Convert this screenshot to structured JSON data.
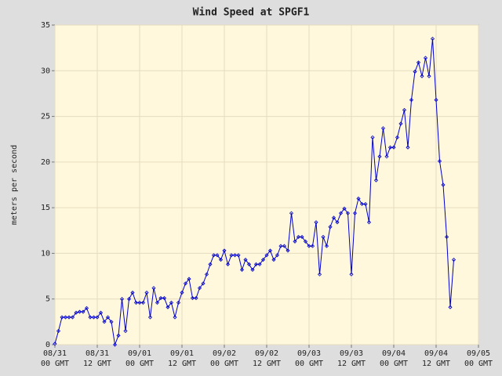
{
  "chart_data": {
    "type": "line",
    "title": "Wind Speed at SPGF1",
    "y_label": "meters per second",
    "x": [
      0,
      1,
      2,
      3,
      4,
      5,
      6,
      7,
      8,
      9,
      10,
      11,
      12,
      13,
      14,
      15,
      16,
      17,
      18,
      19,
      20,
      21,
      22,
      23,
      24,
      25,
      26,
      27,
      28,
      29,
      30,
      31,
      32,
      33,
      34,
      35,
      36,
      37,
      38,
      39,
      40,
      41,
      42,
      43,
      44,
      45,
      46,
      47,
      48,
      49,
      50,
      51,
      52,
      53,
      54,
      55,
      56,
      57,
      58,
      59,
      60,
      61,
      62,
      63,
      64,
      65,
      66,
      67,
      68,
      69,
      70,
      71,
      72,
      73,
      74,
      75,
      76,
      77,
      78,
      79,
      80,
      81,
      82,
      83,
      84,
      85,
      86,
      87,
      88,
      89,
      90,
      91,
      92,
      93,
      94,
      95,
      96,
      97,
      98,
      99,
      100,
      101,
      102,
      103,
      104,
      105,
      106,
      107,
      108,
      109,
      110,
      111,
      112,
      113
    ],
    "series": [
      {
        "name": "Wind Speed",
        "color": "#0000cc",
        "values": [
          0.1,
          1.5,
          3.0,
          3.0,
          3.0,
          3.0,
          3.5,
          3.6,
          3.6,
          4.0,
          3.0,
          3.0,
          3.0,
          3.5,
          2.5,
          3.0,
          2.5,
          0.0,
          1.0,
          5.0,
          1.5,
          5.0,
          5.7,
          4.6,
          4.6,
          4.6,
          5.7,
          3.0,
          6.2,
          4.6,
          5.1,
          5.1,
          4.1,
          4.6,
          3.0,
          4.6,
          5.7,
          6.7,
          7.2,
          5.1,
          5.1,
          6.2,
          6.7,
          7.7,
          8.8,
          9.8,
          9.8,
          9.3,
          10.3,
          8.8,
          9.8,
          9.8,
          9.8,
          8.2,
          9.3,
          8.8,
          8.2,
          8.8,
          8.8,
          9.3,
          9.8,
          10.3,
          9.3,
          9.8,
          10.8,
          10.8,
          10.3,
          14.4,
          11.3,
          11.8,
          11.8,
          11.3,
          10.8,
          10.8,
          13.4,
          7.7,
          11.8,
          10.8,
          12.9,
          13.9,
          13.4,
          14.4,
          14.9,
          14.4,
          7.7,
          14.4,
          16.0,
          15.4,
          15.4,
          13.4,
          22.7,
          18.0,
          20.6,
          23.7,
          20.6,
          21.6,
          21.6,
          22.7,
          24.2,
          25.7,
          21.6,
          26.8,
          29.9,
          30.9,
          29.4,
          31.4,
          29.4,
          33.5,
          26.8,
          20.1,
          17.5,
          11.8,
          4.1,
          9.3
        ]
      }
    ],
    "xlim": [
      0,
      120
    ],
    "xticks": [
      {
        "value": 0,
        "label": "08/31 00 GMT"
      },
      {
        "value": 12,
        "label": "08/31 12 GMT"
      },
      {
        "value": 24,
        "label": "09/01 00 GMT"
      },
      {
        "value": 36,
        "label": "09/01 12 GMT"
      },
      {
        "value": 48,
        "label": "09/02 00 GMT"
      },
      {
        "value": 60,
        "label": "09/02 12 GMT"
      },
      {
        "value": 72,
        "label": "09/03 00 GMT"
      },
      {
        "value": 84,
        "label": "09/03 12 GMT"
      },
      {
        "value": 96,
        "label": "09/04 00 GMT"
      },
      {
        "value": 108,
        "label": "09/04 12 GMT"
      },
      {
        "value": 120,
        "label": "09/05 00 GMT"
      }
    ],
    "ylim": [
      0,
      35
    ],
    "yticks": [
      0,
      5,
      10,
      15,
      20,
      25,
      30,
      35
    ],
    "grid": true
  }
}
